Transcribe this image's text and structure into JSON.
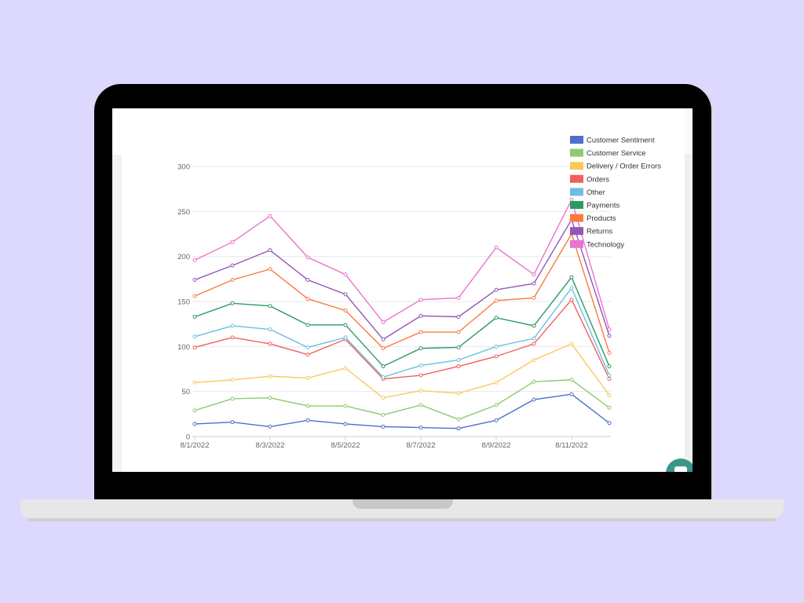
{
  "chart_data": {
    "type": "line",
    "stacked": true,
    "title": "",
    "xlabel": "",
    "ylabel": "",
    "x": [
      "8/1/2022",
      "8/2/2022",
      "8/3/2022",
      "8/4/2022",
      "8/5/2022",
      "8/6/2022",
      "8/7/2022",
      "8/8/2022",
      "8/9/2022",
      "8/10/2022",
      "8/11/2022",
      "8/12/2022"
    ],
    "x_tick_labels": [
      "8/1/2022",
      "8/3/2022",
      "8/5/2022",
      "8/7/2022",
      "8/9/2022",
      "8/11/2022"
    ],
    "ylim": [
      0,
      300
    ],
    "y_ticks": [
      0,
      50,
      100,
      150,
      200,
      250,
      300
    ],
    "grid": true,
    "legend_position": "top-right",
    "series": [
      {
        "name": "Customer Sentiment",
        "color": "#4f6fcf",
        "values": [
          14,
          16,
          11,
          18,
          14,
          11,
          10,
          9,
          18,
          41,
          47,
          15
        ]
      },
      {
        "name": "Customer Service",
        "color": "#8dcb6e",
        "values": [
          15,
          26,
          32,
          16,
          20,
          13,
          25,
          10,
          17,
          20,
          16,
          17
        ]
      },
      {
        "name": "Delivery / Order Errors",
        "color": "#fbc85a",
        "values": [
          31,
          21,
          24,
          31,
          42,
          19,
          16,
          29,
          25,
          24,
          40,
          14
        ]
      },
      {
        "name": "Orders",
        "color": "#ef5f5f",
        "values": [
          39,
          47,
          36,
          26,
          32,
          21,
          17,
          30,
          29,
          18,
          49,
          18
        ]
      },
      {
        "name": "Other",
        "color": "#6cbfe0",
        "values": [
          12,
          13,
          16,
          8,
          2,
          2,
          11,
          7,
          11,
          6,
          13,
          4
        ]
      },
      {
        "name": "Payments",
        "color": "#2e9a62",
        "values": [
          22,
          25,
          26,
          25,
          14,
          12,
          19,
          14,
          32,
          14,
          12,
          10
        ]
      },
      {
        "name": "Products",
        "color": "#fb7b3e",
        "values": [
          23,
          26,
          41,
          29,
          16,
          20,
          18,
          17,
          19,
          31,
          48,
          15
        ]
      },
      {
        "name": "Returns",
        "color": "#9356b7",
        "values": [
          18,
          16,
          21,
          21,
          18,
          10,
          18,
          17,
          12,
          16,
          16,
          19
        ]
      },
      {
        "name": "Technology",
        "color": "#ea74cf",
        "values": [
          22,
          26,
          38,
          25,
          22,
          19,
          18,
          21,
          47,
          10,
          22,
          7
        ]
      }
    ]
  },
  "colors": {
    "background": "#dcd8fe",
    "bezel": "#000000",
    "chat_button": "#3a9688"
  },
  "icons": {
    "chat": "chat-bubble-icon"
  }
}
